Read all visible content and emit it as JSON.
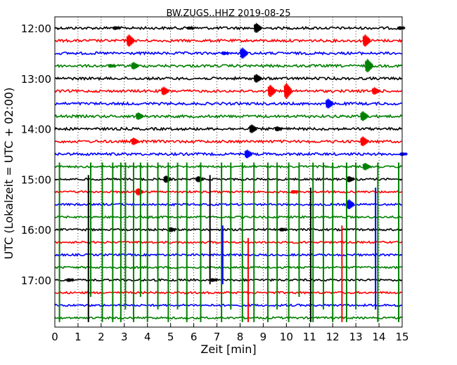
{
  "chart_data": {
    "type": "line",
    "title": "BW.ZUGS..HHZ 2019-08-25",
    "xlabel": "Zeit  [min]",
    "ylabel": "UTC (Lokalzeit = UTC + 02:00)",
    "xlim": [
      0,
      15
    ],
    "x_ticks": [
      "0",
      "1",
      "2",
      "3",
      "4",
      "5",
      "6",
      "7",
      "8",
      "9",
      "10",
      "11",
      "12",
      "13",
      "14",
      "15"
    ],
    "y_ticks": [
      "12:00",
      "13:00",
      "14:00",
      "15:00",
      "16:00",
      "17:00"
    ],
    "grid": "vertical-dotted",
    "trace_interval_min": 15,
    "colors": [
      "#000000",
      "#ff0000",
      "#0000ff",
      "#008000"
    ],
    "series": [
      {
        "row_start": "12:00",
        "color": "#000000",
        "events": [
          [
            2.6,
            0.3
          ],
          [
            5.8,
            0.25
          ],
          [
            8.7,
            0.8
          ],
          [
            14.9,
            0.3
          ]
        ]
      },
      {
        "row_start": "12:15",
        "color": "#ff0000",
        "events": [
          [
            3.2,
            1.0
          ],
          [
            13.4,
            1.0
          ]
        ]
      },
      {
        "row_start": "12:30",
        "color": "#0000ff",
        "events": [
          [
            7.3,
            0.3
          ],
          [
            8.1,
            0.9
          ]
        ]
      },
      {
        "row_start": "12:45",
        "color": "#008000",
        "events": [
          [
            2.4,
            0.3
          ],
          [
            3.4,
            0.6
          ],
          [
            13.5,
            1.1
          ]
        ]
      },
      {
        "row_start": "13:00",
        "color": "#000000",
        "events": [
          [
            8.7,
            0.7
          ]
        ]
      },
      {
        "row_start": "13:15",
        "color": "#ff0000",
        "events": [
          [
            4.7,
            0.7
          ],
          [
            9.3,
            1.0
          ],
          [
            10.0,
            1.3
          ],
          [
            13.8,
            0.6
          ]
        ]
      },
      {
        "row_start": "13:30",
        "color": "#0000ff",
        "events": [
          [
            11.8,
            0.8
          ]
        ]
      },
      {
        "row_start": "13:45",
        "color": "#008000",
        "events": [
          [
            3.6,
            0.6
          ],
          [
            13.3,
            0.8
          ]
        ]
      },
      {
        "row_start": "14:00",
        "color": "#000000",
        "events": [
          [
            8.5,
            0.7
          ],
          [
            9.6,
            0.4
          ]
        ]
      },
      {
        "row_start": "14:15",
        "color": "#ff0000",
        "events": [
          [
            3.4,
            0.6
          ],
          [
            13.3,
            0.8
          ]
        ]
      },
      {
        "row_start": "14:30",
        "color": "#0000ff",
        "events": [
          [
            8.3,
            0.7
          ],
          [
            15.0,
            0.3
          ]
        ]
      },
      {
        "row_start": "14:45",
        "color": "#008000",
        "events": [
          [
            13.4,
            0.6
          ]
        ]
      },
      {
        "row_start": "15:00",
        "color": "#000000",
        "events": [
          [
            4.8,
            0.6
          ],
          [
            6.2,
            0.5
          ],
          [
            12.7,
            0.5
          ]
        ]
      },
      {
        "row_start": "15:15",
        "color": "#ff0000",
        "events": [
          [
            3.6,
            0.6
          ],
          [
            10.3,
            0.3
          ]
        ]
      },
      {
        "row_start": "15:30",
        "color": "#0000ff",
        "events": [
          [
            12.7,
            0.8
          ]
        ]
      },
      {
        "row_start": "15:45",
        "color": "#008000",
        "events": []
      },
      {
        "row_start": "16:00",
        "color": "#000000",
        "events": [
          [
            5.0,
            0.4
          ],
          [
            9.8,
            0.3
          ]
        ]
      },
      {
        "row_start": "16:15",
        "color": "#ff0000",
        "events": []
      },
      {
        "row_start": "16:30",
        "color": "#0000ff",
        "events": []
      },
      {
        "row_start": "16:45",
        "color": "#008000",
        "events": []
      },
      {
        "row_start": "17:00",
        "color": "#000000",
        "events": [
          [
            0.6,
            0.3
          ],
          [
            6.8,
            0.3
          ]
        ]
      },
      {
        "row_start": "17:15",
        "color": "#ff0000",
        "events": []
      },
      {
        "row_start": "17:30",
        "color": "#0000ff",
        "events": []
      },
      {
        "row_start": "17:45",
        "color": "#008000",
        "events": []
      }
    ],
    "spikes": [
      {
        "x": 0.2,
        "color": "#008000",
        "from_row": 11,
        "to_row": 23
      },
      {
        "x": 1.45,
        "color": "#000000",
        "from_row": 12,
        "to_row": 23
      },
      {
        "x": 1.55,
        "color": "#008000",
        "from_row": 11,
        "to_row": 21
      },
      {
        "x": 2.05,
        "color": "#008000",
        "from_row": 11,
        "to_row": 23
      },
      {
        "x": 2.5,
        "color": "#008000",
        "from_row": 11,
        "to_row": 23
      },
      {
        "x": 2.85,
        "color": "#008000",
        "from_row": 11,
        "to_row": 23
      },
      {
        "x": 3.05,
        "color": "#008000",
        "from_row": 11,
        "to_row": 22
      },
      {
        "x": 3.4,
        "color": "#008000",
        "from_row": 11,
        "to_row": 23
      },
      {
        "x": 3.7,
        "color": "#008000",
        "from_row": 11,
        "to_row": 21
      },
      {
        "x": 4.0,
        "color": "#008000",
        "from_row": 11,
        "to_row": 23
      },
      {
        "x": 4.45,
        "color": "#008000",
        "from_row": 11,
        "to_row": 22
      },
      {
        "x": 4.9,
        "color": "#008000",
        "from_row": 11,
        "to_row": 23
      },
      {
        "x": 5.3,
        "color": "#008000",
        "from_row": 11,
        "to_row": 22
      },
      {
        "x": 5.7,
        "color": "#008000",
        "from_row": 11,
        "to_row": 23
      },
      {
        "x": 6.3,
        "color": "#008000",
        "from_row": 11,
        "to_row": 23
      },
      {
        "x": 6.7,
        "color": "#000000",
        "from_row": 12,
        "to_row": 20
      },
      {
        "x": 7.2,
        "color": "#008000",
        "from_row": 11,
        "to_row": 23
      },
      {
        "x": 7.25,
        "color": "#0000ff",
        "from_row": 16,
        "to_row": 20
      },
      {
        "x": 7.6,
        "color": "#008000",
        "from_row": 11,
        "to_row": 22
      },
      {
        "x": 8.1,
        "color": "#008000",
        "from_row": 11,
        "to_row": 23
      },
      {
        "x": 8.35,
        "color": "#ff0000",
        "from_row": 17,
        "to_row": 23
      },
      {
        "x": 8.6,
        "color": "#008000",
        "from_row": 11,
        "to_row": 23
      },
      {
        "x": 9.2,
        "color": "#008000",
        "from_row": 11,
        "to_row": 23
      },
      {
        "x": 9.6,
        "color": "#008000",
        "from_row": 11,
        "to_row": 22
      },
      {
        "x": 10.1,
        "color": "#008000",
        "from_row": 11,
        "to_row": 23
      },
      {
        "x": 10.55,
        "color": "#008000",
        "from_row": 11,
        "to_row": 21
      },
      {
        "x": 11.05,
        "color": "#000000",
        "from_row": 13,
        "to_row": 23
      },
      {
        "x": 11.15,
        "color": "#008000",
        "from_row": 11,
        "to_row": 23
      },
      {
        "x": 11.6,
        "color": "#008000",
        "from_row": 11,
        "to_row": 22
      },
      {
        "x": 12.0,
        "color": "#008000",
        "from_row": 11,
        "to_row": 23
      },
      {
        "x": 12.4,
        "color": "#ff0000",
        "from_row": 16,
        "to_row": 23
      },
      {
        "x": 12.6,
        "color": "#008000",
        "from_row": 11,
        "to_row": 23
      },
      {
        "x": 13.0,
        "color": "#008000",
        "from_row": 11,
        "to_row": 22
      },
      {
        "x": 13.85,
        "color": "#0000ff",
        "from_row": 13,
        "to_row": 22
      },
      {
        "x": 13.95,
        "color": "#008000",
        "from_row": 11,
        "to_row": 23
      },
      {
        "x": 14.85,
        "color": "#008000",
        "from_row": 11,
        "to_row": 23
      }
    ]
  }
}
